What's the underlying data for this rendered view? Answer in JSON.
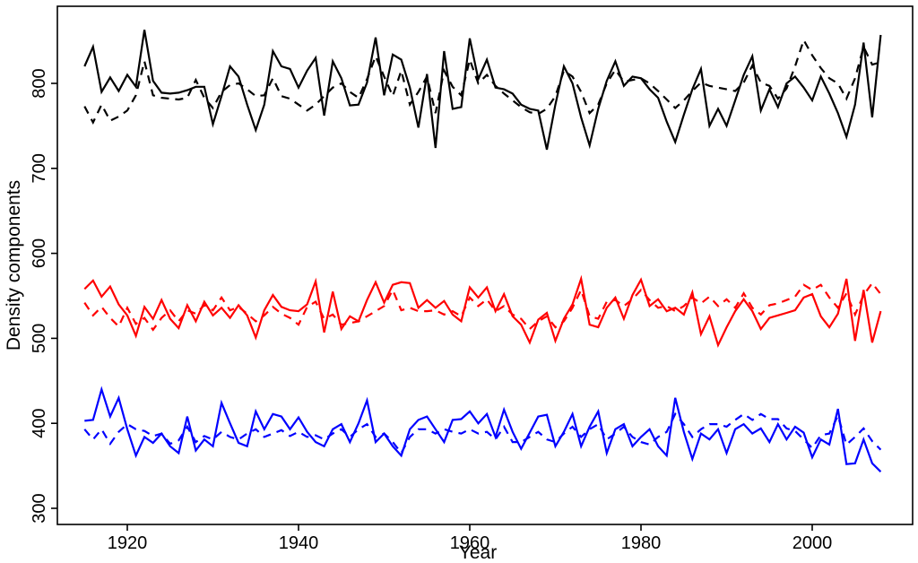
{
  "chart_data": {
    "type": "line",
    "title": "",
    "xlabel": "Year",
    "ylabel": "Density components",
    "x_min": 1915,
    "x_max": 2008,
    "xlim": [
      1911.4,
      2011.9
    ],
    "ylim": [
      290,
      877
    ],
    "x_ticks": [
      1920,
      1940,
      1960,
      1980,
      2000
    ],
    "y_ticks": [
      300,
      400,
      500,
      600,
      700,
      800
    ],
    "grid": false,
    "legend": "none",
    "background": "#ffffff",
    "box_color": "#000000",
    "series": [
      {
        "name": "component-1-solid",
        "color": "#000000",
        "style": "solid",
        "values": [
          820,
          843,
          790,
          807,
          791,
          810,
          796,
          863,
          803,
          789,
          788,
          789,
          792,
          796,
          796,
          752,
          785,
          820,
          808,
          775,
          745,
          775,
          838,
          820,
          817,
          795,
          815,
          830,
          762,
          826,
          806,
          774,
          775,
          801,
          854,
          786,
          834,
          828,
          795,
          748,
          811,
          724,
          838,
          770,
          772,
          853,
          805,
          828,
          795,
          793,
          788,
          775,
          770,
          768,
          722,
          775,
          820,
          800,
          760,
          727,
          770,
          803,
          826,
          797,
          808,
          806,
          793,
          783,
          755,
          731,
          763,
          793,
          817,
          750,
          770,
          750,
          780,
          810,
          832,
          768,
          793,
          772,
          800,
          808,
          795,
          780,
          808,
          788,
          765,
          737,
          775,
          848,
          760,
          857
        ]
      },
      {
        "name": "component-1-dashed",
        "color": "#000000",
        "style": "dashed",
        "values": [
          773,
          754,
          775,
          756,
          761,
          768,
          786,
          826,
          786,
          783,
          782,
          781,
          783,
          804,
          783,
          771,
          790,
          798,
          800,
          793,
          785,
          786,
          806,
          785,
          782,
          775,
          768,
          775,
          785,
          795,
          800,
          790,
          783,
          805,
          832,
          808,
          785,
          815,
          775,
          790,
          808,
          765,
          815,
          796,
          786,
          828,
          800,
          810,
          797,
          788,
          780,
          772,
          766,
          764,
          770,
          785,
          815,
          808,
          790,
          765,
          775,
          800,
          816,
          802,
          804,
          806,
          800,
          791,
          781,
          771,
          780,
          791,
          801,
          797,
          795,
          793,
          791,
          801,
          821,
          801,
          797,
          782,
          794,
          820,
          851,
          833,
          818,
          806,
          800,
          782,
          806,
          843,
          822,
          825
        ]
      },
      {
        "name": "component-2-solid",
        "color": "#ff0000",
        "style": "solid",
        "values": [
          558,
          568,
          549,
          561,
          540,
          527,
          503,
          537,
          523,
          545,
          523,
          512,
          539,
          520,
          543,
          527,
          536,
          524,
          539,
          527,
          501,
          533,
          551,
          537,
          533,
          532,
          540,
          567,
          507,
          555,
          511,
          526,
          520,
          545,
          566,
          542,
          563,
          566,
          565,
          536,
          545,
          536,
          544,
          528,
          520,
          560,
          548,
          560,
          532,
          552,
          526,
          516,
          495,
          522,
          530,
          497,
          523,
          540,
          570,
          516,
          513,
          536,
          548,
          523,
          551,
          569,
          538,
          546,
          532,
          536,
          528,
          554,
          505,
          526,
          492,
          513,
          532,
          546,
          532,
          511,
          524,
          527,
          530,
          533,
          548,
          552,
          526,
          513,
          529,
          570,
          497,
          557,
          495,
          532
        ]
      },
      {
        "name": "component-2-dashed",
        "color": "#ff0000",
        "style": "dashed",
        "values": [
          542,
          527,
          537,
          524,
          514,
          536,
          517,
          524,
          510,
          524,
          533,
          520,
          533,
          529,
          539,
          533,
          548,
          533,
          537,
          529,
          520,
          527,
          537,
          529,
          524,
          516,
          537,
          543,
          523,
          528,
          516,
          518,
          520,
          526,
          532,
          538,
          557,
          533,
          536,
          532,
          532,
          533,
          528,
          532,
          526,
          548,
          538,
          546,
          532,
          538,
          528,
          523,
          511,
          520,
          526,
          513,
          520,
          536,
          557,
          526,
          523,
          543,
          545,
          538,
          546,
          557,
          545,
          536,
          538,
          532,
          538,
          548,
          541,
          549,
          538,
          546,
          536,
          553,
          536,
          528,
          539,
          541,
          545,
          549,
          563,
          557,
          563,
          548,
          536,
          553,
          528,
          551,
          565,
          552
        ]
      },
      {
        "name": "component-3-solid",
        "color": "#0000ff",
        "style": "solid",
        "values": [
          403,
          404,
          440,
          408,
          430,
          393,
          362,
          384,
          377,
          388,
          373,
          365,
          408,
          368,
          381,
          373,
          424,
          400,
          377,
          373,
          414,
          393,
          411,
          408,
          393,
          407,
          390,
          378,
          373,
          393,
          399,
          378,
          400,
          427,
          378,
          388,
          373,
          362,
          393,
          404,
          408,
          393,
          378,
          404,
          405,
          414,
          400,
          411,
          384,
          416,
          390,
          370,
          389,
          408,
          410,
          373,
          390,
          411,
          373,
          396,
          414,
          365,
          393,
          399,
          373,
          384,
          393,
          373,
          362,
          430,
          390,
          358,
          388,
          381,
          393,
          365,
          393,
          399,
          388,
          394,
          378,
          399,
          381,
          396,
          389,
          360,
          381,
          375,
          417,
          352,
          353,
          381,
          353,
          343
        ]
      },
      {
        "name": "component-3-dashed",
        "color": "#0000ff",
        "style": "dashed",
        "values": [
          393,
          381,
          393,
          376,
          390,
          399,
          393,
          391,
          385,
          388,
          376,
          380,
          396,
          378,
          385,
          381,
          390,
          384,
          381,
          388,
          393,
          384,
          388,
          392,
          385,
          390,
          384,
          386,
          381,
          388,
          393,
          384,
          393,
          399,
          384,
          388,
          378,
          365,
          384,
          393,
          393,
          388,
          393,
          390,
          388,
          393,
          388,
          390,
          381,
          396,
          378,
          378,
          384,
          390,
          381,
          378,
          388,
          396,
          384,
          393,
          399,
          381,
          388,
          396,
          384,
          378,
          375,
          384,
          390,
          411,
          399,
          384,
          393,
          399,
          399,
          396,
          404,
          411,
          404,
          411,
          405,
          405,
          394,
          391,
          381,
          371,
          386,
          388,
          409,
          375,
          384,
          394,
          379,
          369
        ]
      }
    ]
  },
  "axes": {
    "x_title": "Year",
    "y_title": "Density components",
    "x_tick_labels": [
      "1920",
      "1940",
      "1960",
      "1980",
      "2000"
    ],
    "y_tick_labels": [
      "300",
      "400",
      "500",
      "600",
      "700",
      "800"
    ]
  }
}
